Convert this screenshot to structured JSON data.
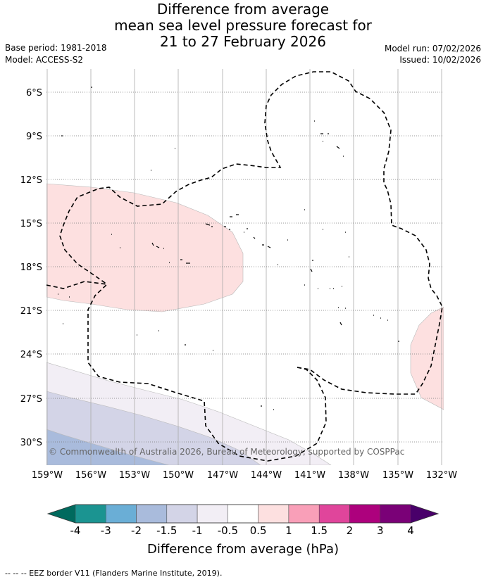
{
  "title": {
    "line1": "Difference from average",
    "line2": "mean sea level pressure forecast for",
    "line3": "21 to 27 February 2026"
  },
  "meta": {
    "base_period": "Base period: 1981-2018",
    "model": "Model: ACCESS-S2",
    "model_run": "Model run: 07/02/2026",
    "issued": "Issued: 10/02/2026"
  },
  "map": {
    "lat_labels": [
      "6°S",
      "9°S",
      "12°S",
      "15°S",
      "18°S",
      "21°S",
      "24°S",
      "27°S",
      "30°S"
    ],
    "lon_labels": [
      "159°W",
      "156°W",
      "153°W",
      "150°W",
      "147°W",
      "144°W",
      "141°W",
      "138°W",
      "135°W",
      "132°W"
    ],
    "copyright": "© Commonwealth of Australia 2026, Bureau of Meteorology, supported by COSPPac",
    "colors": {
      "pos_05_1": "#fde0e0",
      "neg_05_1": "#f2eef5",
      "neg_1_15": "#d3d4e7",
      "neg_15_2": "#a9bbdc"
    }
  },
  "colorbar": {
    "ticks": [
      "-4",
      "-3",
      "-2",
      "-1.5",
      "-1",
      "-0.5",
      "0.5",
      "1",
      "1.5",
      "2",
      "3",
      "4"
    ],
    "colors": [
      "#1b9491",
      "#6aaed6",
      "#a9bbdc",
      "#d3d4e7",
      "#f2eef5",
      "#ffffff",
      "#fde0e0",
      "#f99fb8",
      "#e0459b",
      "#ad017d",
      "#7a0177"
    ],
    "low_extend_color": "#006a5e",
    "high_extend_color": "#49006a",
    "title": "Difference from average (hPa)"
  },
  "footer": "--  --  -- EEZ border V11 (Flanders Marine Institute, 2019)."
}
